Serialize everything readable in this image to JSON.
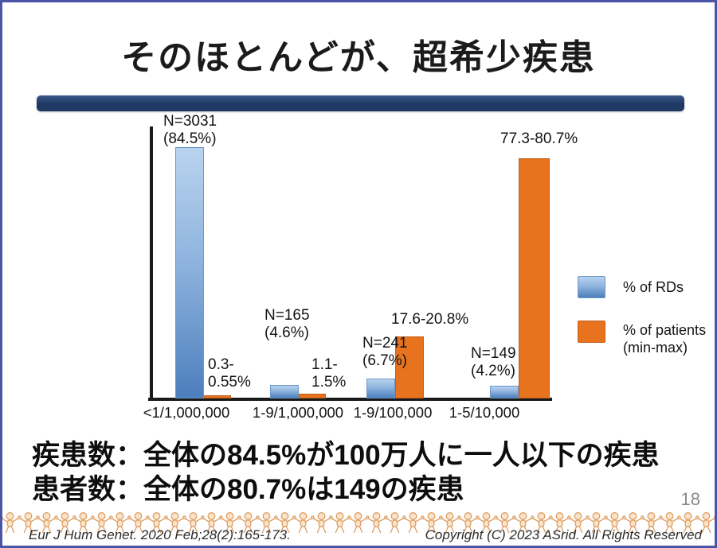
{
  "slide": {
    "title": "そのほとんどが、超希少疾患",
    "page_number": "18",
    "statements": [
      "疾患数：全体の84.5%が100万人に一人以下の疾患",
      "患者数：全体の80.7%は149の疾患"
    ],
    "footer": {
      "citation": "Eur J Hum Genet. 2020 Feb;28(2):165-173.",
      "copyright": "Copyright (C) 2023  ASrid. All Rights Reserved"
    }
  },
  "chart_data": {
    "type": "bar",
    "categories": [
      "<1/1,000,000",
      "1-9/1,000,000",
      "1-9/100,000",
      "1-5/10,000"
    ],
    "series": [
      {
        "name": "% of RDs",
        "color": "#6d9ed6",
        "values": [
          84.5,
          4.6,
          6.7,
          4.2
        ],
        "counts": [
          3031,
          165,
          241,
          149
        ],
        "bar_labels": [
          "N=3031\n(84.5%)",
          "N=165\n(4.6%)",
          "N=241\n(6.7%)",
          "N=149\n(4.2%)"
        ]
      },
      {
        "name": "% of patients (min-max)",
        "color": "#e8731e",
        "values_min": [
          0.3,
          1.1,
          17.6,
          77.3
        ],
        "values_max": [
          0.55,
          1.5,
          20.8,
          80.7
        ],
        "bar_labels": [
          "0.3-\n0.55%",
          "1.1-\n1.5%",
          "17.6-20.8%",
          "77.3-80.7%"
        ]
      }
    ],
    "legend": [
      "% of RDs",
      "% of patients\n(min-max)"
    ],
    "legend_position": "right",
    "ylim": [
      0,
      90
    ],
    "grid": false,
    "title": "",
    "xlabel": "",
    "ylabel": ""
  },
  "colors": {
    "divider_navy": "#1f3864",
    "frame_blue": "#4a55a5",
    "bar_blue": "#6d9ed6",
    "bar_orange": "#e8731e",
    "doll_outline": "#de9e62",
    "doll_fill": "#f9e3ca"
  }
}
